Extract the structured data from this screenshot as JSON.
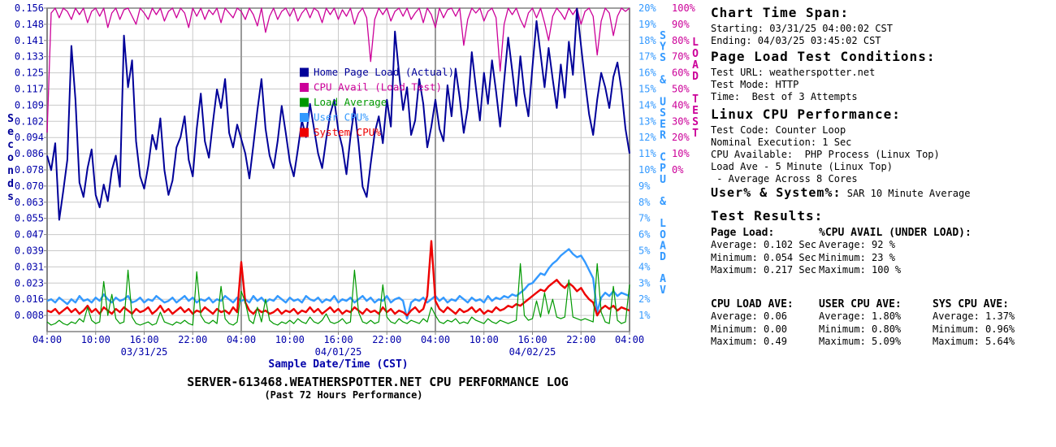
{
  "title": "SERVER-613468.WEATHERSPOTTER.NET CPU PERFORMANCE LOG",
  "subtitle": "(Past 72 Hours Performance)",
  "colors": {
    "navy": "#000099",
    "magenta": "#CC0099",
    "green": "#009900",
    "lightblue": "#3399FF",
    "red": "#EE0000",
    "tick_label": "#0000AA",
    "grid": "#C9C9C9",
    "grid_dark": "#9A9A9A",
    "border": "#808080"
  },
  "chart_data": {
    "type": "line",
    "title": "SERVER-613468.WEATHERSPOTTER.NET CPU PERFORMANCE LOG",
    "subtitle": "(Past 72 Hours Performance)",
    "xlabel": "Sample Date/Time (CST)",
    "x_hours_span": 72,
    "x_tick_hours": [
      0,
      6,
      12,
      18,
      24,
      30,
      36,
      42,
      48,
      54,
      60,
      66,
      72
    ],
    "x_tick_labels": [
      "04:00",
      "10:00",
      "16:00",
      "22:00",
      "04:00",
      "10:00",
      "16:00",
      "22:00",
      "04:00",
      "10:00",
      "16:00",
      "22:00",
      "04:00"
    ],
    "x_date_labels": [
      "03/31/25",
      "04/01/25",
      "04/02/25"
    ],
    "grid": true,
    "legend_position": "upper-center-inside",
    "left_axis": {
      "label": "Seconds",
      "max": 0.15625,
      "min": 0,
      "tick_labels": [
        "0.156",
        "0.148",
        "0.141",
        "0.133",
        "0.125",
        "0.117",
        "0.109",
        "0.102",
        "0.094",
        "0.086",
        "0.078",
        "0.070",
        "0.063",
        "0.055",
        "0.047",
        "0.039",
        "0.031",
        "0.023",
        "0.016",
        "0.008"
      ]
    },
    "cyan_axis": {
      "label": "SYS & USER CPU & LOAD AV",
      "max": 20,
      "min": 0,
      "tick_labels": [
        "20%",
        "19%",
        "18%",
        "17%",
        "16%",
        "15%",
        "14%",
        "13%",
        "12%",
        "11%",
        "10%",
        "9%",
        "8%",
        "7%",
        "6%",
        "5%",
        "4%",
        "3%",
        "2%",
        "1%"
      ]
    },
    "magenta_axis": {
      "label": "LOAD TEST",
      "max": 100,
      "min": 0,
      "tick_labels": [
        "100%",
        "90%",
        "80%",
        "70%",
        "60%",
        "50%",
        "40%",
        "30%",
        "20%",
        "10%",
        "0%"
      ]
    },
    "series": [
      {
        "name": "Home Page Load (Actual)",
        "color": "#000099",
        "axis": "seconds",
        "width": 2,
        "values": [
          0.085,
          0.078,
          0.091,
          0.054,
          0.068,
          0.083,
          0.138,
          0.112,
          0.072,
          0.065,
          0.079,
          0.088,
          0.066,
          0.06,
          0.071,
          0.063,
          0.078,
          0.085,
          0.07,
          0.143,
          0.118,
          0.131,
          0.092,
          0.075,
          0.069,
          0.08,
          0.095,
          0.088,
          0.103,
          0.078,
          0.066,
          0.073,
          0.089,
          0.094,
          0.104,
          0.083,
          0.075,
          0.098,
          0.115,
          0.092,
          0.084,
          0.101,
          0.117,
          0.108,
          0.122,
          0.096,
          0.089,
          0.1,
          0.093,
          0.086,
          0.074,
          0.09,
          0.107,
          0.122,
          0.098,
          0.085,
          0.079,
          0.092,
          0.109,
          0.096,
          0.082,
          0.075,
          0.088,
          0.102,
          0.094,
          0.11,
          0.098,
          0.086,
          0.079,
          0.093,
          0.105,
          0.112,
          0.097,
          0.089,
          0.076,
          0.094,
          0.108,
          0.091,
          0.07,
          0.065,
          0.081,
          0.096,
          0.104,
          0.091,
          0.112,
          0.099,
          0.145,
          0.125,
          0.107,
          0.118,
          0.095,
          0.102,
          0.122,
          0.11,
          0.089,
          0.099,
          0.112,
          0.098,
          0.092,
          0.119,
          0.104,
          0.127,
          0.113,
          0.096,
          0.108,
          0.135,
          0.118,
          0.102,
          0.125,
          0.11,
          0.131,
          0.116,
          0.099,
          0.121,
          0.142,
          0.126,
          0.109,
          0.133,
          0.115,
          0.104,
          0.128,
          0.15,
          0.134,
          0.118,
          0.137,
          0.122,
          0.108,
          0.129,
          0.113,
          0.14,
          0.124,
          0.156,
          0.138,
          0.121,
          0.105,
          0.095,
          0.112,
          0.125,
          0.118,
          0.108,
          0.123,
          0.13,
          0.117,
          0.098,
          0.086
        ]
      },
      {
        "name": "CPU Avail (Load Test)",
        "color": "#CC0099",
        "axis": "load_test_pct",
        "width": 1.3,
        "values": [
          23,
          97,
          100,
          94,
          100,
          98,
          93,
          100,
          96,
          100,
          91,
          98,
          100,
          95,
          100,
          88,
          97,
          100,
          93,
          99,
          100,
          95,
          90,
          100,
          97,
          93,
          100,
          96,
          100,
          92,
          98,
          100,
          94,
          100,
          97,
          88,
          100,
          95,
          100,
          93,
          99,
          96,
          100,
          91,
          100,
          97,
          94,
          100,
          98,
          93,
          100,
          96,
          89,
          100,
          85,
          95,
          100,
          93,
          98,
          100,
          95,
          100,
          92,
          97,
          100,
          94,
          100,
          98,
          91,
          100,
          96,
          100,
          93,
          99,
          95,
          100,
          90,
          97,
          100,
          94,
          67,
          93,
          100,
          96,
          100,
          92,
          98,
          100,
          95,
          100,
          93,
          97,
          100,
          91,
          100,
          96,
          88,
          100,
          94,
          99,
          100,
          95,
          100,
          77,
          93,
          100,
          97,
          100,
          92,
          98,
          100,
          94,
          61,
          90,
          100,
          96,
          100,
          93,
          88,
          97,
          100,
          94,
          100,
          91,
          80,
          95,
          100,
          97,
          93,
          100,
          96,
          100,
          90,
          98,
          100,
          95,
          71,
          92,
          100,
          97,
          83,
          95,
          100,
          98,
          100
        ]
      },
      {
        "name": "Load Average",
        "color": "#009900",
        "axis": "cpu_pct",
        "width": 1.2,
        "values": [
          0.6,
          0.4,
          0.5,
          0.7,
          0.5,
          0.4,
          0.6,
          0.5,
          0.8,
          0.6,
          1.5,
          0.7,
          0.5,
          0.6,
          3.1,
          1.0,
          2.3,
          0.8,
          0.5,
          0.6,
          3.8,
          0.9,
          0.5,
          0.4,
          0.5,
          0.6,
          0.4,
          0.5,
          1.2,
          0.6,
          0.5,
          0.4,
          0.6,
          0.5,
          0.7,
          0.5,
          0.4,
          3.7,
          1.0,
          0.6,
          0.5,
          0.7,
          0.5,
          2.8,
          0.8,
          0.5,
          0.4,
          0.6,
          2.5,
          1.8,
          0.7,
          0.5,
          1.5,
          0.6,
          2.0,
          0.7,
          0.5,
          0.4,
          0.6,
          0.5,
          0.7,
          0.5,
          0.8,
          0.6,
          0.5,
          0.9,
          0.6,
          0.5,
          0.7,
          1.1,
          0.6,
          0.5,
          0.6,
          0.8,
          0.5,
          0.6,
          3.8,
          1.2,
          0.6,
          0.5,
          0.7,
          0.5,
          0.6,
          2.9,
          0.9,
          0.6,
          0.5,
          0.8,
          0.6,
          0.5,
          0.7,
          0.6,
          0.5,
          0.8,
          0.6,
          1.5,
          1.0,
          0.6,
          0.5,
          0.7,
          0.6,
          0.8,
          0.5,
          0.6,
          0.5,
          0.9,
          0.7,
          0.6,
          0.5,
          0.8,
          0.6,
          0.5,
          0.7,
          0.6,
          0.5,
          0.6,
          0.7,
          4.2,
          1.0,
          0.7,
          0.8,
          1.9,
          0.9,
          2.4,
          1.1,
          2.0,
          0.9,
          0.8,
          0.9,
          3.2,
          0.9,
          0.8,
          0.7,
          0.8,
          0.7,
          0.6,
          4.2,
          1.2,
          0.6,
          0.5,
          2.8,
          0.7,
          0.5,
          0.6,
          2.9
        ]
      },
      {
        "name": "User CPU%",
        "color": "#3399FF",
        "axis": "cpu_pct",
        "width": 2.4,
        "values": [
          1.9,
          2.0,
          1.8,
          2.1,
          1.9,
          1.7,
          2.0,
          1.8,
          2.2,
          1.9,
          2.0,
          1.8,
          2.1,
          1.9,
          2.3,
          2.0,
          1.8,
          2.1,
          1.9,
          2.0,
          2.2,
          1.8,
          1.9,
          2.1,
          1.8,
          2.0,
          1.9,
          2.2,
          2.0,
          1.8,
          1.9,
          2.1,
          1.8,
          2.0,
          2.2,
          1.9,
          2.1,
          1.8,
          2.0,
          1.9,
          2.1,
          1.8,
          2.0,
          1.9,
          2.2,
          2.0,
          1.8,
          2.1,
          1.9,
          2.0,
          1.8,
          2.2,
          1.9,
          2.1,
          1.8,
          2.0,
          1.9,
          2.2,
          2.0,
          1.8,
          2.1,
          1.9,
          2.0,
          1.8,
          2.2,
          2.0,
          1.9,
          2.1,
          1.8,
          2.0,
          1.9,
          2.2,
          1.8,
          2.0,
          1.9,
          2.1,
          1.8,
          2.0,
          2.2,
          1.9,
          2.1,
          1.8,
          2.0,
          1.9,
          2.2,
          1.8,
          2.0,
          2.1,
          1.9,
          0.8,
          1.8,
          2.0,
          1.9,
          2.1,
          1.8,
          2.0,
          2.2,
          1.9,
          2.1,
          1.8,
          2.0,
          1.9,
          2.2,
          2.0,
          1.8,
          2.1,
          1.9,
          2.0,
          1.8,
          2.2,
          1.9,
          2.1,
          2.0,
          2.2,
          2.1,
          2.3,
          2.2,
          2.4,
          2.6,
          2.9,
          3.0,
          3.3,
          3.6,
          3.5,
          3.9,
          4.2,
          4.4,
          4.7,
          4.9,
          5.1,
          4.8,
          4.6,
          4.7,
          4.3,
          3.8,
          3.3,
          1.2,
          2.1,
          2.4,
          2.2,
          2.5,
          2.2,
          2.4,
          2.3,
          2.2
        ]
      },
      {
        "name": "System CPU%",
        "color": "#EE0000",
        "axis": "cpu_pct",
        "width": 2.4,
        "values": [
          1.3,
          1.2,
          1.4,
          1.1,
          1.3,
          1.5,
          1.2,
          1.4,
          1.1,
          1.3,
          1.6,
          1.2,
          1.4,
          1.1,
          1.5,
          1.3,
          1.1,
          1.4,
          1.2,
          1.5,
          1.3,
          1.1,
          1.4,
          1.2,
          1.3,
          1.5,
          1.1,
          1.3,
          1.6,
          1.2,
          1.4,
          1.1,
          1.3,
          1.5,
          1.2,
          1.4,
          1.1,
          1.3,
          1.2,
          1.5,
          1.3,
          1.1,
          1.4,
          1.2,
          1.3,
          1.1,
          1.5,
          1.2,
          4.3,
          1.8,
          1.3,
          1.1,
          1.4,
          1.2,
          1.3,
          1.1,
          1.2,
          1.4,
          1.1,
          1.3,
          1.2,
          1.4,
          1.1,
          1.3,
          1.2,
          1.5,
          1.2,
          1.4,
          1.1,
          1.3,
          1.5,
          1.2,
          1.4,
          1.1,
          1.3,
          1.2,
          1.5,
          1.3,
          1.1,
          1.4,
          1.2,
          1.3,
          1.1,
          1.5,
          1.2,
          1.4,
          1.1,
          1.3,
          1.2,
          1.0,
          1.3,
          1.5,
          1.2,
          1.4,
          2.2,
          5.6,
          1.9,
          1.4,
          1.2,
          1.5,
          1.3,
          1.1,
          1.4,
          1.2,
          1.3,
          1.5,
          1.2,
          1.4,
          1.1,
          1.3,
          1.2,
          1.5,
          1.3,
          1.4,
          1.6,
          1.5,
          1.7,
          1.6,
          1.8,
          2.0,
          2.2,
          2.4,
          2.6,
          2.5,
          2.8,
          3.0,
          3.2,
          2.9,
          2.7,
          3.0,
          2.8,
          2.5,
          2.7,
          2.3,
          2.0,
          1.8,
          1.0,
          1.4,
          1.6,
          1.4,
          1.6,
          1.3,
          1.5,
          1.4,
          1.3
        ]
      }
    ]
  },
  "info_panel": {
    "chart_time_span": {
      "heading": "Chart Time Span:",
      "starting": "Starting: 03/31/25 04:00:02 CST",
      "ending": "Ending: 04/03/25 03:45:02 CST"
    },
    "page_load_conditions": {
      "heading": "Page Load Test Conditions:",
      "test_url": "Test URL: weatherspotter.net",
      "test_mode": "Test Mode: HTTP",
      "time": "Time:  Best of 3 Attempts"
    },
    "linux_cpu": {
      "heading": "Linux CPU Performance:",
      "line1": "Test Code: Counter Loop",
      "line2": "Nominal Execution: 1 Sec",
      "line3": "CPU Available:  PHP Process (Linux Top)",
      "line4": "Load Ave - 5 Minute (Linux Top)",
      "line5": " - Average Across 8 Cores"
    },
    "user_system": {
      "heading": "User% & System%:",
      "detail": " SAR 10 Minute Average"
    },
    "test_results": {
      "heading": "Test Results:",
      "page_load": {
        "heading": "Page Load:",
        "average": "Average: 0.102 Sec",
        "minimum": "Minimum: 0.054 Sec",
        "maximum": "Maximum: 0.217 Sec"
      },
      "cpu_avail": {
        "heading": "%CPU AVAIL (UNDER LOAD):",
        "average": "Average: 92 %",
        "minimum": "Minimum: 23 %",
        "maximum": "Maximum: 100 %"
      },
      "cpu_load_ave": {
        "heading": "CPU LOAD AVE:",
        "average": "Average: 0.06",
        "minimum": "Minimum: 0.00",
        "maximum": "Maximum: 0.49"
      },
      "user_cpu_ave": {
        "heading": "USER CPU AVE:",
        "average": "Average: 1.80%",
        "minimum": "Minimum: 0.80%",
        "maximum": "Maximum: 5.09%"
      },
      "sys_cpu_ave": {
        "heading": "SYS CPU AVE:",
        "average": "Average: 1.37%",
        "minimum": "Minimum: 0.96%",
        "maximum": "Maximum: 5.64%"
      }
    }
  }
}
